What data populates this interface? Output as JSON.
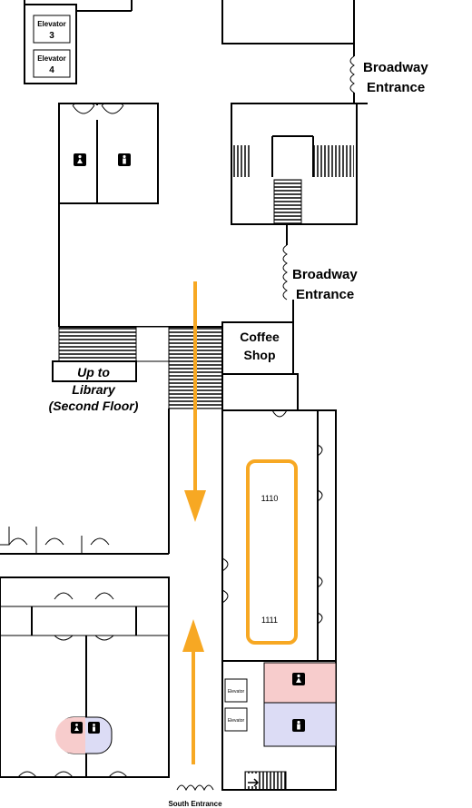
{
  "elevators": {
    "e3": {
      "line1": "Elevator",
      "line2": "3"
    },
    "e4": {
      "line1": "Elevator",
      "line2": "4"
    },
    "south_upper": "Elevator",
    "south_lower": "Elevator"
  },
  "labels": {
    "broadway_top": {
      "line1": "Broadway",
      "line2": "Entrance"
    },
    "broadway_mid": {
      "line1": "Broadway",
      "line2": "Entrance"
    },
    "coffee_shop": {
      "line1": "Coffee",
      "line2": "Shop"
    },
    "library": {
      "line1": "Up to",
      "line2": "Library",
      "line3": "(Second Floor)"
    },
    "south_entrance": "South Entrance"
  },
  "rooms": {
    "room_1110": "1110",
    "room_1111": "1111"
  },
  "colors": {
    "womens_restroom": "#f7cccc",
    "mens_restroom": "#dcdcf5",
    "route_arrow": "#f7a823",
    "highlight_outline": "#f7a823"
  },
  "icons": {
    "restroom_women_top": "woman-icon",
    "restroom_men_top": "man-icon",
    "restroom_women_bottom": "woman-icon",
    "restroom_men_bottom": "man-icon",
    "restroom_unisex": "restroom-icon",
    "stair_arrow": "arrow-icon"
  }
}
